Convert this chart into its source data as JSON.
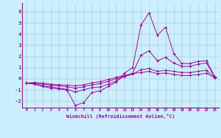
{
  "xlabel": "Windchill (Refroidissement éolien,°C)",
  "background_color": "#cceeff",
  "grid_color": "#aaccdd",
  "line_color": "#990099",
  "xlim": [
    -0.5,
    23.5
  ],
  "ylim": [
    -2.6,
    6.8
  ],
  "xticks": [
    0,
    1,
    2,
    3,
    4,
    5,
    6,
    7,
    8,
    9,
    10,
    11,
    12,
    13,
    14,
    15,
    16,
    17,
    18,
    19,
    20,
    21,
    22,
    23
  ],
  "yticks": [
    -2,
    -1,
    0,
    1,
    2,
    3,
    4,
    5,
    6
  ],
  "hours": [
    0,
    1,
    2,
    3,
    4,
    5,
    6,
    7,
    8,
    9,
    10,
    11,
    12,
    13,
    14,
    15,
    16,
    17,
    18,
    19,
    20,
    21,
    22,
    23
  ],
  "line1": [
    -0.4,
    -0.5,
    -0.7,
    -0.85,
    -0.9,
    -1.05,
    -2.4,
    -2.15,
    -1.25,
    -1.1,
    -0.7,
    -0.3,
    0.5,
    1.0,
    4.8,
    5.9,
    3.9,
    4.6,
    2.25,
    1.35,
    1.35,
    1.55,
    1.6,
    0.2
  ],
  "line2": [
    -0.4,
    -0.45,
    -0.65,
    -0.75,
    -0.85,
    -0.95,
    -1.2,
    -1.0,
    -0.8,
    -0.75,
    -0.5,
    -0.2,
    0.2,
    0.5,
    2.1,
    2.5,
    1.6,
    1.9,
    1.4,
    1.1,
    1.1,
    1.3,
    1.4,
    0.15
  ],
  "line3": [
    -0.4,
    -0.4,
    -0.5,
    -0.6,
    -0.65,
    -0.72,
    -0.85,
    -0.72,
    -0.55,
    -0.45,
    -0.25,
    0.0,
    0.2,
    0.4,
    0.8,
    0.9,
    0.65,
    0.75,
    0.65,
    0.55,
    0.55,
    0.65,
    0.75,
    0.1
  ],
  "line4": [
    -0.4,
    -0.35,
    -0.4,
    -0.5,
    -0.55,
    -0.58,
    -0.65,
    -0.55,
    -0.38,
    -0.28,
    -0.08,
    0.12,
    0.28,
    0.45,
    0.55,
    0.65,
    0.45,
    0.5,
    0.38,
    0.28,
    0.28,
    0.38,
    0.48,
    0.08
  ]
}
